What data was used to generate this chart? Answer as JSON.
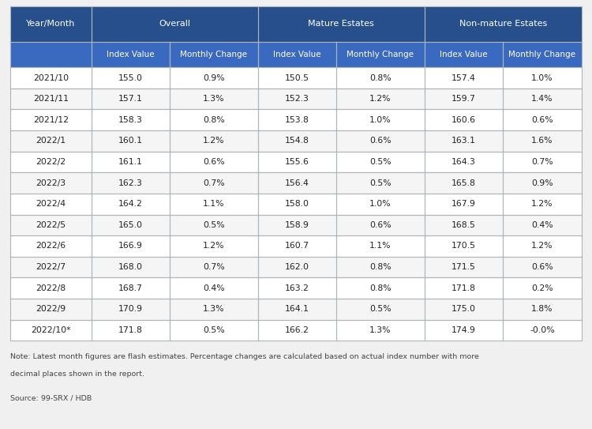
{
  "header_row1_labels": [
    "Year/Month",
    "Overall",
    "Mature Estates",
    "Non-mature Estates"
  ],
  "header_row1_spans": [
    1,
    2,
    2,
    2
  ],
  "header_row2": [
    "",
    "Index Value",
    "Monthly Change",
    "Index Value",
    "Monthly Change",
    "Index Value",
    "Monthly Change"
  ],
  "rows": [
    [
      "2021/10",
      "155.0",
      "0.9%",
      "150.5",
      "0.8%",
      "157.4",
      "1.0%"
    ],
    [
      "2021/11",
      "157.1",
      "1.3%",
      "152.3",
      "1.2%",
      "159.7",
      "1.4%"
    ],
    [
      "2021/12",
      "158.3",
      "0.8%",
      "153.8",
      "1.0%",
      "160.6",
      "0.6%"
    ],
    [
      "2022/1",
      "160.1",
      "1.2%",
      "154.8",
      "0.6%",
      "163.1",
      "1.6%"
    ],
    [
      "2022/2",
      "161.1",
      "0.6%",
      "155.6",
      "0.5%",
      "164.3",
      "0.7%"
    ],
    [
      "2022/3",
      "162.3",
      "0.7%",
      "156.4",
      "0.5%",
      "165.8",
      "0.9%"
    ],
    [
      "2022/4",
      "164.2",
      "1.1%",
      "158.0",
      "1.0%",
      "167.9",
      "1.2%"
    ],
    [
      "2022/5",
      "165.0",
      "0.5%",
      "158.9",
      "0.6%",
      "168.5",
      "0.4%"
    ],
    [
      "2022/6",
      "166.9",
      "1.2%",
      "160.7",
      "1.1%",
      "170.5",
      "1.2%"
    ],
    [
      "2022/7",
      "168.0",
      "0.7%",
      "162.0",
      "0.8%",
      "171.5",
      "0.6%"
    ],
    [
      "2022/8",
      "168.7",
      "0.4%",
      "163.2",
      "0.8%",
      "171.8",
      "0.2%"
    ],
    [
      "2022/9",
      "170.9",
      "1.3%",
      "164.1",
      "0.5%",
      "175.0",
      "1.8%"
    ],
    [
      "2022/10*",
      "171.8",
      "0.5%",
      "166.2",
      "1.3%",
      "174.9",
      "-0.0%"
    ]
  ],
  "note_line1": "Note: Latest month figures are flash estimates. Percentage changes are calculated based on actual index number with more",
  "note_line2": "decimal places shown in the report.",
  "source": "Source: 99-SRX / HDB",
  "header_bg": "#264f8c",
  "subheader_bg": "#3a6abf",
  "row_odd_bg": "#ffffff",
  "row_even_bg": "#f5f5f5",
  "header_text_color": "#ffffff",
  "body_text_color": "#222222",
  "border_color": "#adb5bd",
  "note_color": "#444444",
  "bg_color": "#f0f0f0",
  "col_weights": [
    1.08,
    1.05,
    1.18,
    1.05,
    1.18,
    1.05,
    1.05
  ]
}
